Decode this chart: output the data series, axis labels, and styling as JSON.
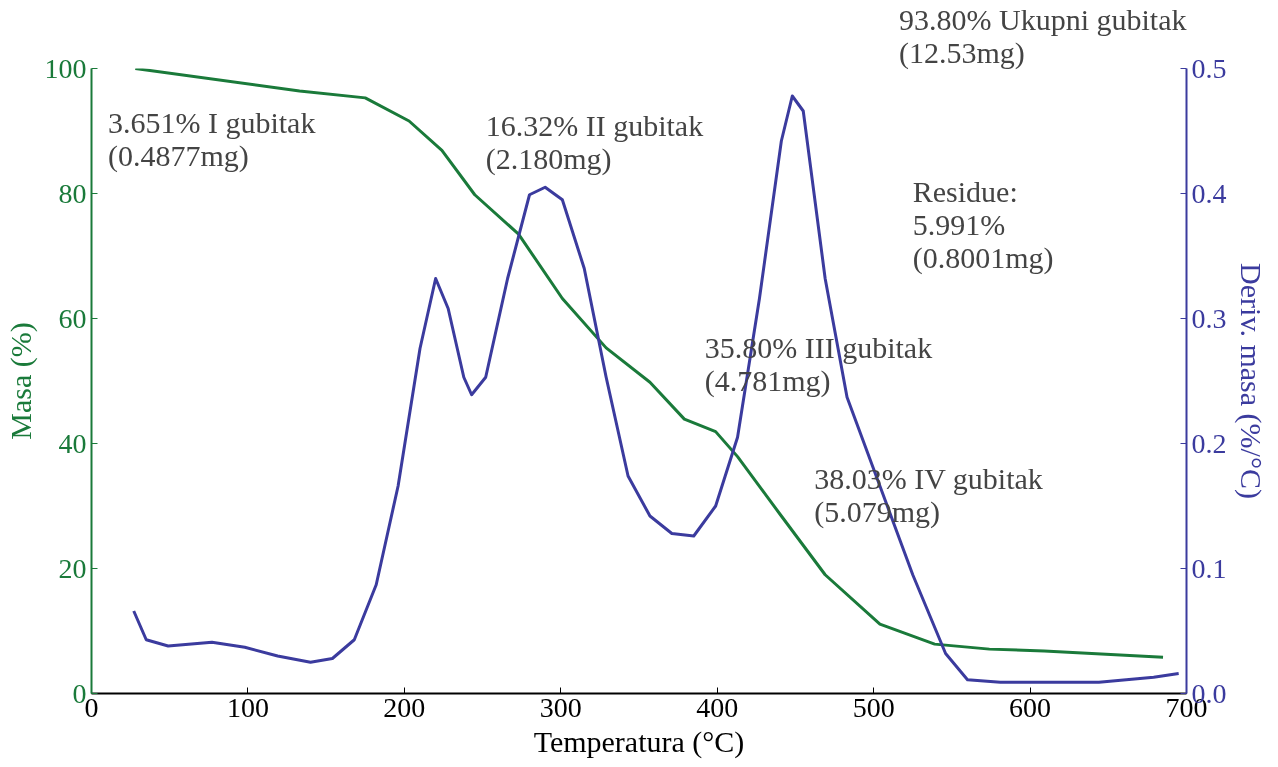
{
  "chart_data": {
    "type": "line",
    "xlabel": "Temperatura (°C)",
    "ylabel": "Masa (%)",
    "y2label": "Deriv. masa (%/°C)",
    "xlim": [
      0,
      700
    ],
    "xticks": [
      0,
      100,
      200,
      300,
      400,
      500,
      600,
      700
    ],
    "ylim": [
      0,
      100
    ],
    "yticks": [
      0,
      20,
      40,
      60,
      80,
      100
    ],
    "y2lim": [
      0,
      0.5
    ],
    "y2ticks": [
      {
        "value": 0,
        "label": "0.0"
      },
      0.1,
      0.2,
      0.3,
      0.4,
      0.5
    ],
    "grid": false,
    "line_style": "solid",
    "marker": "none",
    "series": [
      {
        "color": "#1a7a3a",
        "x": [
          28,
          133,
          175,
          203,
          224,
          245,
          273,
          301,
          329,
          357,
          379,
          399,
          413,
          441,
          469,
          504,
          539,
          574,
          609,
          685
        ],
        "values": [
          100,
          96.4,
          95.3,
          91.6,
          86.9,
          79.8,
          73.5,
          63.2,
          55.3,
          49.8,
          43.9,
          41.9,
          37.9,
          28.4,
          19,
          11.1,
          7.9,
          7.1,
          6.8,
          5.8
        ]
      },
      {
        "color": "#3b3b9e",
        "axis": "y2",
        "x": [
          27,
          35,
          49,
          77,
          98,
          119,
          140,
          154,
          168,
          182,
          196,
          210,
          220,
          228,
          238,
          243,
          252,
          266,
          280,
          290,
          301,
          315,
          329,
          343,
          357,
          371,
          385,
          399,
          413,
          427,
          441,
          448,
          455,
          469,
          483,
          504,
          525,
          546,
          560,
          581,
          609,
          644,
          679,
          695
        ],
        "values": [
          0.066,
          0.043,
          0.038,
          0.041,
          0.037,
          0.03,
          0.025,
          0.028,
          0.043,
          0.087,
          0.166,
          0.276,
          0.332,
          0.308,
          0.253,
          0.239,
          0.253,
          0.332,
          0.399,
          0.405,
          0.395,
          0.34,
          0.253,
          0.174,
          0.142,
          0.128,
          0.126,
          0.15,
          0.205,
          0.316,
          0.442,
          0.478,
          0.466,
          0.332,
          0.237,
          0.166,
          0.095,
          0.032,
          0.011,
          0.009,
          0.009,
          0.009,
          0.013,
          0.016
        ]
      }
    ],
    "annotations": [
      "93.80% Ukupni gubitak\n(12.53mg)",
      "3.651% I gubitak\n(0.4877mg)",
      "16.32% II gubitak\n(2.180mg)",
      "Residue:\n5.991%\n(0.8001mg)",
      "35.80% III gubitak\n(4.781mg)",
      "38.03% IV gubitak\n(5.079mg)"
    ]
  }
}
